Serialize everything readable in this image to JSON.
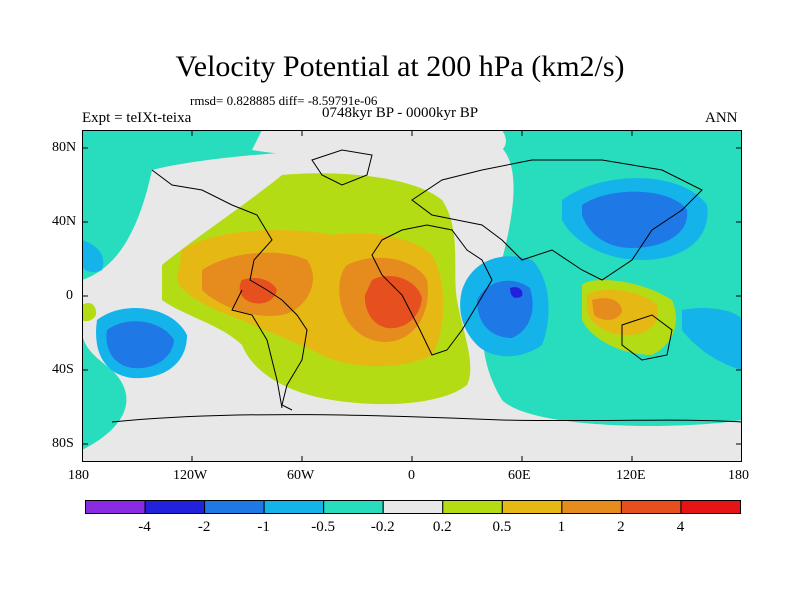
{
  "title": "Velocity Potential at 200 hPa (km2/s)",
  "stats": "rmsd= 0.828885 diff= -8.59791e-06",
  "left_label": "Expt = teIXt-teixa",
  "center_label": "0748kyr BP - 0000kyr BP",
  "right_label": "ANN",
  "axes": {
    "lat_ticks": [
      "80N",
      "40N",
      "0",
      "40S",
      "80S"
    ],
    "lon_ticks": [
      "180",
      "120W",
      "60W",
      "0",
      "60E",
      "120E",
      "180"
    ]
  },
  "colorbar": {
    "colors": [
      "#8a2be2",
      "#2222dd",
      "#1e78e6",
      "#14b4ea",
      "#28dcbe",
      "#e8e8e8",
      "#b4dc14",
      "#e6b814",
      "#e68c1e",
      "#e6501e",
      "#e61414"
    ],
    "labels": [
      "-4",
      "-2",
      "-1",
      "-0.5",
      "-0.2",
      "0.2",
      "0.5",
      "1",
      "2",
      "4"
    ]
  }
}
